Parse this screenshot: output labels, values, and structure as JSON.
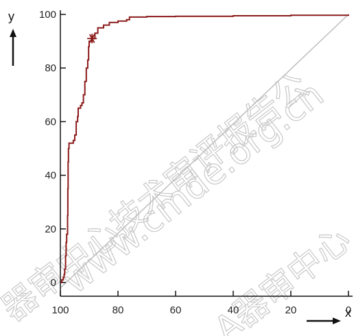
{
  "chart_data": {
    "type": "line",
    "title": "",
    "xlabel": "x",
    "ylabel": "y",
    "xlim": [
      100,
      0
    ],
    "ylim": [
      0,
      100
    ],
    "x_ticks": [
      100,
      80,
      60,
      40,
      20,
      0
    ],
    "y_ticks": [
      0,
      20,
      40,
      60,
      80,
      100
    ],
    "grid": false,
    "colors": {
      "curve": "#8b1a1a",
      "diagonal": "#bdbdbd",
      "axis": "#111111"
    },
    "series": [
      {
        "values": [
          [
            100,
            0
          ],
          [
            99.5,
            1
          ],
          [
            99,
            2
          ],
          [
            98.7,
            3
          ],
          [
            98.5,
            5
          ],
          [
            98.2,
            10
          ],
          [
            98,
            15
          ],
          [
            97.8,
            18
          ],
          [
            97.5,
            25
          ],
          [
            97.4,
            35
          ],
          [
            97.3,
            45
          ],
          [
            97.2,
            50
          ],
          [
            97,
            52
          ],
          [
            96,
            52
          ],
          [
            95.5,
            53
          ],
          [
            95,
            55
          ],
          [
            94.5,
            60
          ],
          [
            94,
            62
          ],
          [
            93.8,
            65
          ],
          [
            93,
            66
          ],
          [
            92.5,
            67
          ],
          [
            92,
            70
          ],
          [
            91.5,
            75
          ],
          [
            91,
            80
          ],
          [
            90.5,
            83
          ],
          [
            90.2,
            88
          ],
          [
            90,
            90
          ],
          [
            89,
            91
          ],
          [
            88,
            93
          ],
          [
            87,
            95
          ],
          [
            85,
            96
          ],
          [
            83,
            97
          ],
          [
            80,
            97.5
          ],
          [
            77,
            98
          ],
          [
            76,
            99
          ],
          [
            70,
            99.2
          ],
          [
            60,
            99.3
          ],
          [
            40,
            99.5
          ],
          [
            20,
            99.7
          ],
          [
            0,
            100
          ]
        ]
      }
    ],
    "reference_line": [
      [
        100,
        0
      ],
      [
        0,
        100
      ]
    ],
    "marker": {
      "x": 89,
      "y": 91,
      "symbol": "asterisk"
    }
  },
  "watermark": {
    "line1": "www.cmde.org.cn",
    "line2": "器审中心技术审评报告公",
    "line3": "A器审中心"
  }
}
